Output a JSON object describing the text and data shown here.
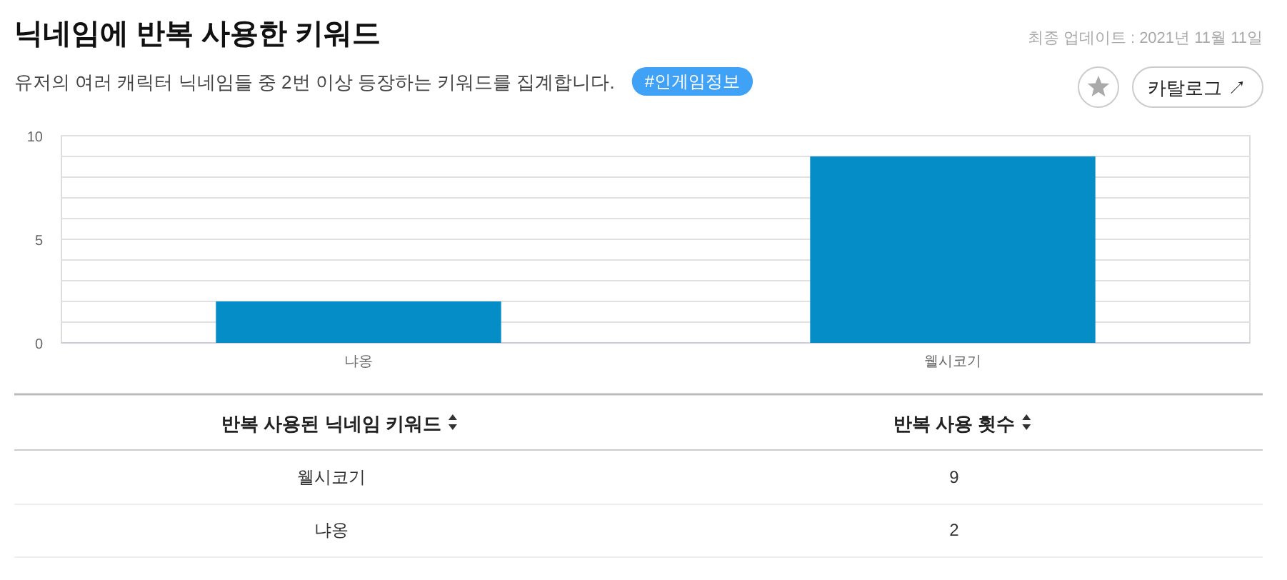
{
  "chart_data": {
    "type": "bar",
    "title": "닉네임에 반복 사용한 키워드",
    "subtitle": "유저의 여러 캐릭터 닉네임들 중 2번 이상 등장하는 키워드를 집계합니다.",
    "annotations": [
      "최종 업데이트 : 2021년 11월 11일",
      "#인게임정보",
      "카탈로그 ↗",
      "반복 사용된 닉네임 키워드",
      "반복 사용 횟수",
      "웰시코기",
      "9",
      "냐옹",
      "2"
    ],
    "categories": [
      "냐옹",
      "웰시코기"
    ],
    "values": [
      2,
      9
    ],
    "color": "#058dc7",
    "ylim": [
      0,
      10
    ],
    "yticks": [
      0,
      {
        "value": 1,
        "label": null
      },
      {
        "value": 2,
        "label": null
      },
      {
        "value": 3,
        "label": null
      },
      {
        "value": 4,
        "label": null
      },
      5,
      {
        "value": 6,
        "label": null
      },
      {
        "value": 7,
        "label": null
      },
      {
        "value": 8,
        "label": null
      },
      {
        "value": 9,
        "label": null
      },
      10
    ],
    "grid": true
  }
}
